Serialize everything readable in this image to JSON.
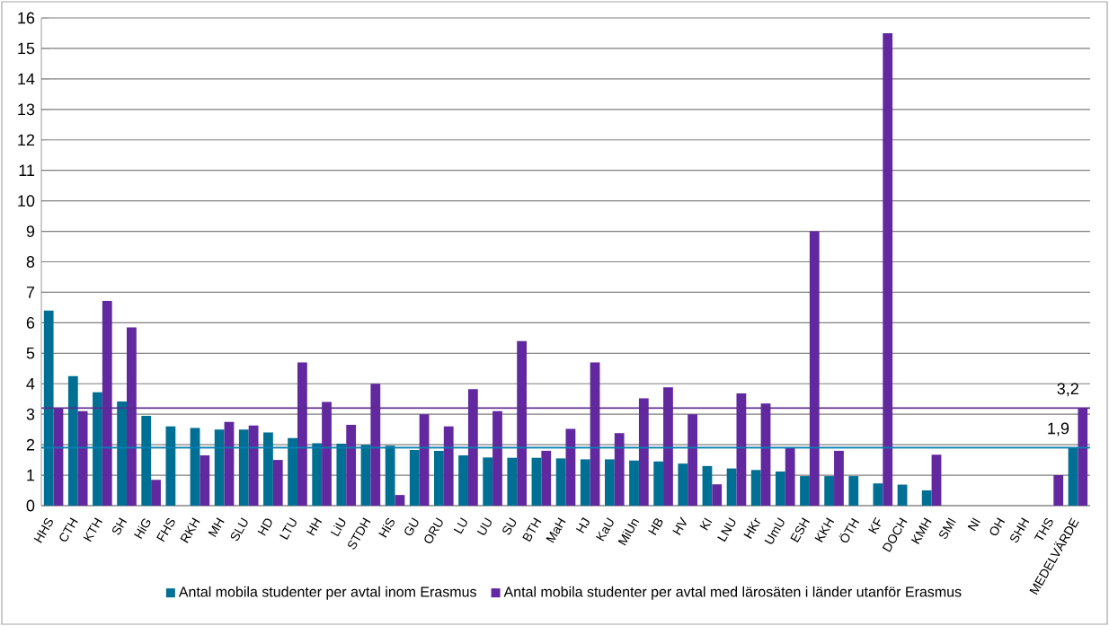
{
  "chart_data": {
    "type": "bar",
    "categories": [
      "HHS",
      "CTH",
      "KTH",
      "SH",
      "HiG",
      "FHS",
      "RKH",
      "MH",
      "SLU",
      "HD",
      "LTU",
      "HH",
      "LiU",
      "STDH",
      "HiS",
      "GU",
      "ORU",
      "LU",
      "UU",
      "SU",
      "BTH",
      "MaH",
      "HJ",
      "KaU",
      "MiUn",
      "HB",
      "HV",
      "KI",
      "LNU",
      "HKr",
      "UmU",
      "ESH",
      "KKH",
      "ÖTH",
      "KF",
      "DOCH",
      "KMH",
      "SMI",
      "NI",
      "OH",
      "SHH",
      "THS",
      "MEDELVÄRDE"
    ],
    "series": [
      {
        "name": "Antal mobila studenter per avtal inom Erasmus",
        "color": "#006f94",
        "values": [
          6.4,
          4.25,
          3.72,
          3.42,
          2.95,
          2.6,
          2.55,
          2.5,
          2.5,
          2.4,
          2.22,
          2.05,
          2.03,
          2.0,
          1.97,
          1.83,
          1.8,
          1.65,
          1.58,
          1.57,
          1.57,
          1.55,
          1.52,
          1.52,
          1.48,
          1.45,
          1.38,
          1.3,
          1.22,
          1.17,
          1.12,
          0.97,
          0.97,
          0.97,
          0.73,
          0.69,
          0.5,
          null,
          null,
          null,
          null,
          null,
          1.9
        ],
        "value_labels": [
          null,
          null,
          null,
          null,
          null,
          null,
          null,
          null,
          null,
          null,
          null,
          null,
          null,
          null,
          null,
          null,
          null,
          null,
          null,
          null,
          null,
          null,
          null,
          null,
          null,
          null,
          null,
          null,
          null,
          null,
          null,
          null,
          null,
          null,
          null,
          null,
          null,
          null,
          null,
          null,
          null,
          null,
          "1,9"
        ]
      },
      {
        "name": "Antal mobila studenter per avtal med lärosäten i länder utanför Erasmus",
        "color": "#6228a0",
        "values": [
          3.2,
          3.1,
          6.72,
          5.85,
          0.85,
          null,
          1.65,
          2.75,
          2.63,
          1.5,
          4.7,
          3.4,
          2.65,
          4.0,
          0.35,
          3.0,
          2.6,
          3.82,
          3.1,
          5.4,
          1.8,
          2.52,
          4.7,
          2.38,
          3.52,
          3.88,
          3.0,
          0.7,
          3.68,
          3.35,
          1.9,
          9.0,
          1.8,
          null,
          15.5,
          null,
          1.67,
          null,
          null,
          null,
          null,
          1.0,
          3.2
        ],
        "value_labels": [
          null,
          null,
          null,
          null,
          null,
          null,
          null,
          null,
          null,
          null,
          null,
          null,
          null,
          null,
          null,
          null,
          null,
          null,
          null,
          null,
          null,
          null,
          null,
          null,
          null,
          null,
          null,
          null,
          null,
          null,
          null,
          null,
          null,
          null,
          null,
          null,
          null,
          null,
          null,
          null,
          null,
          null,
          "3,2"
        ]
      }
    ],
    "ylim": [
      0,
      16
    ],
    "yticks": [
      0,
      1,
      2,
      3,
      4,
      5,
      6,
      7,
      8,
      9,
      10,
      11,
      12,
      13,
      14,
      15,
      16
    ],
    "grid": "y",
    "legend": "bottom",
    "ref_lines": [
      {
        "axis": "y",
        "value": 3.2,
        "color": "#5b2d8e"
      },
      {
        "axis": "y",
        "value": 1.9,
        "color": "#0a7fb0"
      }
    ]
  }
}
